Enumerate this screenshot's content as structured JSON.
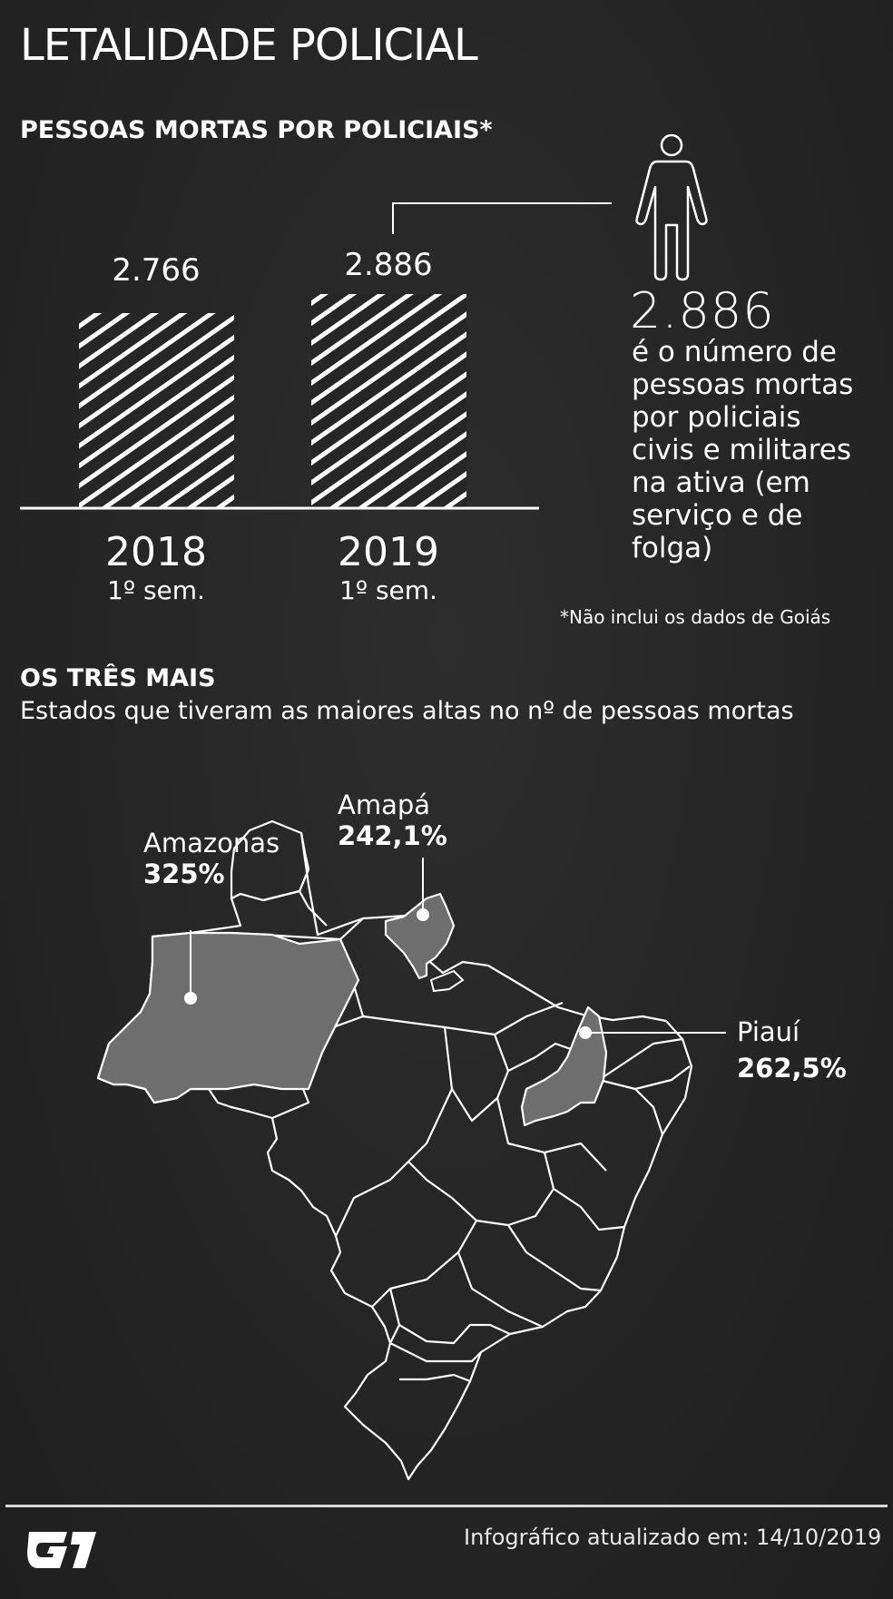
{
  "title": "LETALIDADE POLICIAL",
  "section1": {
    "heading": "PESSOAS MORTAS POR POLICIAIS*",
    "bars": [
      {
        "value_label": "2.766",
        "value": 2766,
        "year": "2018",
        "period": "1º sem."
      },
      {
        "value_label": "2.886",
        "value": 2886,
        "year": "2019",
        "period": "1º sem."
      }
    ],
    "highlight_number": "2.886",
    "highlight_text": "é o número de pessoas mortas por policiais civis e militares na ativa (em serviço e de folga)",
    "footnote": "*Não inclui os dados de Goiás"
  },
  "section2": {
    "heading": "OS TRÊS MAIS",
    "subheading": "Estados que tiveram as maiores altas no nº de pessoas mortas",
    "states": [
      {
        "name": "Amazonas",
        "pct": "325%"
      },
      {
        "name": "Amapá",
        "pct": "242,1%"
      },
      {
        "name": "Piauí",
        "pct": "262,5%"
      }
    ],
    "colors": {
      "highlight_fill": "#6e6e6e",
      "outline": "#ffffff"
    }
  },
  "footer": {
    "logo": "G1",
    "updated": "Infográfico atualizado em: 14/10/2019"
  }
}
